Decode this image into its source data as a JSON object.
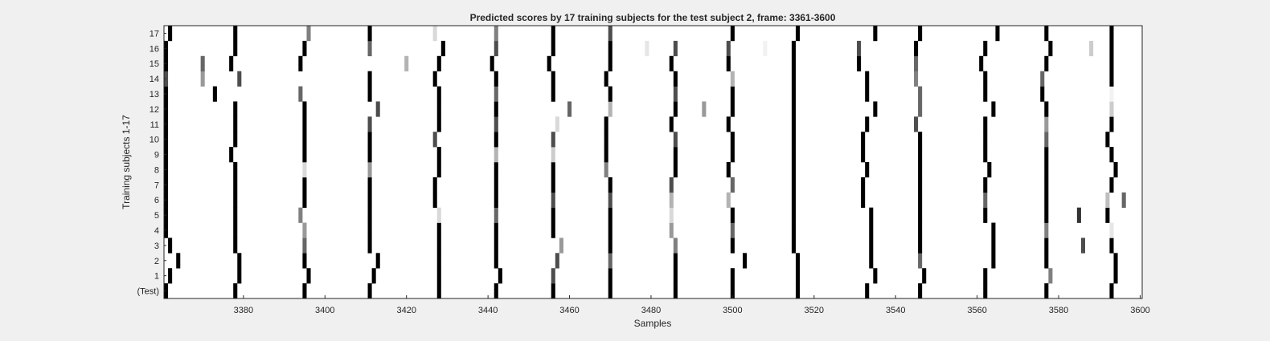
{
  "chart_data": {
    "type": "heatmap",
    "title": "Predicted scores by 17 training subjects for the test subject 2, frame: 3361-3600",
    "xlabel": "Samples",
    "ylabel": "Training subjects 1-17",
    "xlim": [
      3361,
      3600
    ],
    "x_ticks": [
      3380,
      3400,
      3420,
      3440,
      3460,
      3480,
      3500,
      3520,
      3540,
      3560,
      3580,
      3600
    ],
    "rows": [
      "(Test)",
      "1",
      "2",
      "3",
      "4",
      "5",
      "6",
      "7",
      "8",
      "9",
      "10",
      "11",
      "12",
      "13",
      "14",
      "15",
      "16",
      "17"
    ],
    "colormap": "white (0) to black (1)",
    "background_color": "#ffffff",
    "figure_color": "#f0f0f0",
    "marks_format": "per row: [sample, score 0-1]",
    "marks": {
      "(Test)": [
        [
          3361,
          1
        ],
        [
          3378,
          1
        ],
        [
          3395,
          1
        ],
        [
          3411,
          1
        ],
        [
          3428,
          1
        ],
        [
          3442,
          1
        ],
        [
          3456,
          1
        ],
        [
          3470,
          1
        ],
        [
          3486,
          1
        ],
        [
          3500,
          1
        ],
        [
          3516,
          1
        ],
        [
          3533,
          1
        ],
        [
          3546,
          1
        ],
        [
          3562,
          1
        ],
        [
          3577,
          1
        ],
        [
          3593,
          1
        ]
      ],
      "1": [
        [
          3362,
          1
        ],
        [
          3379,
          1
        ],
        [
          3396,
          1
        ],
        [
          3412,
          1
        ],
        [
          3428,
          1
        ],
        [
          3443,
          1
        ],
        [
          3456,
          0.7
        ],
        [
          3470,
          1
        ],
        [
          3486,
          1
        ],
        [
          3500,
          1
        ],
        [
          3516,
          1
        ],
        [
          3535,
          1
        ],
        [
          3547,
          1
        ],
        [
          3562,
          1
        ],
        [
          3578,
          0.5
        ],
        [
          3594,
          1
        ]
      ],
      "2": [
        [
          3364,
          1
        ],
        [
          3379,
          1
        ],
        [
          3395,
          1
        ],
        [
          3413,
          1
        ],
        [
          3428,
          1
        ],
        [
          3442,
          1
        ],
        [
          3457,
          0.7
        ],
        [
          3470,
          0.6
        ],
        [
          3486,
          1
        ],
        [
          3503,
          1
        ],
        [
          3516,
          1
        ],
        [
          3534,
          1
        ],
        [
          3546,
          0.6
        ],
        [
          3564,
          1
        ],
        [
          3577,
          1
        ],
        [
          3594,
          1
        ]
      ],
      "3": [
        [
          3362,
          1
        ],
        [
          3378,
          1
        ],
        [
          3395,
          0.6
        ],
        [
          3411,
          1
        ],
        [
          3428,
          1
        ],
        [
          3442,
          1
        ],
        [
          3458,
          0.4
        ],
        [
          3470,
          1
        ],
        [
          3486,
          0.5
        ],
        [
          3500,
          1
        ],
        [
          3515,
          1
        ],
        [
          3534,
          1
        ],
        [
          3546,
          1
        ],
        [
          3564,
          1
        ],
        [
          3577,
          1
        ],
        [
          3586,
          0.7
        ],
        [
          3593,
          1
        ]
      ],
      "4": [
        [
          3361,
          1
        ],
        [
          3378,
          1
        ],
        [
          3395,
          0.4
        ],
        [
          3411,
          1
        ],
        [
          3428,
          1
        ],
        [
          3442,
          1
        ],
        [
          3456,
          1
        ],
        [
          3470,
          1
        ],
        [
          3485,
          0.4
        ],
        [
          3500,
          0.6
        ],
        [
          3515,
          1
        ],
        [
          3534,
          1
        ],
        [
          3546,
          1
        ],
        [
          3564,
          1
        ],
        [
          3577,
          0.5
        ],
        [
          3593,
          0.1
        ]
      ],
      "5": [
        [
          3361,
          1
        ],
        [
          3378,
          1
        ],
        [
          3394,
          0.5
        ],
        [
          3411,
          1
        ],
        [
          3428,
          0.15
        ],
        [
          3442,
          0.6
        ],
        [
          3456,
          1
        ],
        [
          3470,
          1
        ],
        [
          3485,
          0.15
        ],
        [
          3500,
          1
        ],
        [
          3515,
          1
        ],
        [
          3534,
          1
        ],
        [
          3546,
          1
        ],
        [
          3562,
          1
        ],
        [
          3577,
          1
        ],
        [
          3585,
          0.8
        ],
        [
          3592,
          1
        ]
      ],
      "6": [
        [
          3361,
          1
        ],
        [
          3378,
          1
        ],
        [
          3395,
          1
        ],
        [
          3411,
          1
        ],
        [
          3427,
          1
        ],
        [
          3442,
          1
        ],
        [
          3456,
          0.7
        ],
        [
          3470,
          0.7
        ],
        [
          3485,
          0.3
        ],
        [
          3499,
          0.3
        ],
        [
          3515,
          1
        ],
        [
          3532,
          1
        ],
        [
          3546,
          1
        ],
        [
          3562,
          0.6
        ],
        [
          3577,
          1
        ],
        [
          3592,
          0.25
        ],
        [
          3596,
          0.6
        ]
      ],
      "7": [
        [
          3361,
          1
        ],
        [
          3378,
          1
        ],
        [
          3395,
          1
        ],
        [
          3411,
          1
        ],
        [
          3427,
          1
        ],
        [
          3442,
          1
        ],
        [
          3456,
          1
        ],
        [
          3470,
          1
        ],
        [
          3485,
          0.7
        ],
        [
          3500,
          0.6
        ],
        [
          3515,
          1
        ],
        [
          3532,
          1
        ],
        [
          3546,
          1
        ],
        [
          3562,
          1
        ],
        [
          3577,
          1
        ],
        [
          3593,
          1
        ]
      ],
      "8": [
        [
          3361,
          1
        ],
        [
          3378,
          1
        ],
        [
          3395,
          0.15
        ],
        [
          3411,
          0.4
        ],
        [
          3428,
          1
        ],
        [
          3442,
          1
        ],
        [
          3456,
          1
        ],
        [
          3469,
          0.5
        ],
        [
          3486,
          1
        ],
        [
          3499,
          1
        ],
        [
          3515,
          1
        ],
        [
          3533,
          1
        ],
        [
          3546,
          1
        ],
        [
          3563,
          1
        ],
        [
          3577,
          1
        ],
        [
          3594,
          1
        ]
      ],
      "9": [
        [
          3361,
          1
        ],
        [
          3377,
          1
        ],
        [
          3395,
          1
        ],
        [
          3411,
          1
        ],
        [
          3428,
          1
        ],
        [
          3442,
          0.3
        ],
        [
          3456,
          0.2
        ],
        [
          3469,
          1
        ],
        [
          3486,
          1
        ],
        [
          3500,
          1
        ],
        [
          3515,
          1
        ],
        [
          3532,
          1
        ],
        [
          3546,
          1
        ],
        [
          3562,
          1
        ],
        [
          3577,
          1
        ],
        [
          3593,
          1
        ]
      ],
      "10": [
        [
          3361,
          1
        ],
        [
          3378,
          1
        ],
        [
          3395,
          1
        ],
        [
          3411,
          1
        ],
        [
          3427,
          0.7
        ],
        [
          3442,
          1
        ],
        [
          3456,
          0.7
        ],
        [
          3469,
          1
        ],
        [
          3486,
          0.7
        ],
        [
          3500,
          1
        ],
        [
          3515,
          1
        ],
        [
          3532,
          1
        ],
        [
          3546,
          1
        ],
        [
          3562,
          1
        ],
        [
          3577,
          0.6
        ],
        [
          3592,
          1
        ]
      ],
      "11": [
        [
          3361,
          1
        ],
        [
          3378,
          1
        ],
        [
          3395,
          1
        ],
        [
          3411,
          0.7
        ],
        [
          3428,
          1
        ],
        [
          3442,
          0.7
        ],
        [
          3457,
          0.15
        ],
        [
          3469,
          1
        ],
        [
          3485,
          1
        ],
        [
          3499,
          1
        ],
        [
          3515,
          1
        ],
        [
          3533,
          1
        ],
        [
          3545,
          0.7
        ],
        [
          3562,
          1
        ],
        [
          3577,
          0.4
        ],
        [
          3593,
          1
        ]
      ],
      "12": [
        [
          3361,
          1
        ],
        [
          3378,
          1
        ],
        [
          3395,
          1
        ],
        [
          3413,
          0.7
        ],
        [
          3428,
          1
        ],
        [
          3442,
          1
        ],
        [
          3460,
          0.6
        ],
        [
          3470,
          0.3
        ],
        [
          3486,
          1
        ],
        [
          3493,
          0.4
        ],
        [
          3500,
          1
        ],
        [
          3515,
          1
        ],
        [
          3535,
          1
        ],
        [
          3546,
          0.6
        ],
        [
          3564,
          1
        ],
        [
          3577,
          1
        ],
        [
          3593,
          0.2
        ]
      ],
      "13": [
        [
          3361,
          1
        ],
        [
          3373,
          1
        ],
        [
          3394,
          0.6
        ],
        [
          3411,
          1
        ],
        [
          3428,
          1
        ],
        [
          3442,
          0.6
        ],
        [
          3456,
          1
        ],
        [
          3470,
          1
        ],
        [
          3486,
          0.7
        ],
        [
          3500,
          1
        ],
        [
          3515,
          1
        ],
        [
          3533,
          1
        ],
        [
          3546,
          0.6
        ],
        [
          3562,
          1
        ],
        [
          3576,
          1
        ],
        [
          3593,
          0.05
        ]
      ],
      "14": [
        [
          3361,
          0.7
        ],
        [
          3370,
          0.4
        ],
        [
          3379,
          0.7
        ],
        [
          3411,
          1
        ],
        [
          3427,
          1
        ],
        [
          3442,
          1
        ],
        [
          3456,
          1
        ],
        [
          3469,
          1
        ],
        [
          3486,
          1
        ],
        [
          3500,
          0.3
        ],
        [
          3515,
          1
        ],
        [
          3533,
          1
        ],
        [
          3545,
          0.5
        ],
        [
          3562,
          1
        ],
        [
          3576,
          0.6
        ],
        [
          3593,
          1
        ]
      ],
      "15": [
        [
          3361,
          1
        ],
        [
          3370,
          0.6
        ],
        [
          3377,
          1
        ],
        [
          3394,
          1
        ],
        [
          3420,
          0.3
        ],
        [
          3428,
          1
        ],
        [
          3441,
          1
        ],
        [
          3455,
          1
        ],
        [
          3470,
          1
        ],
        [
          3485,
          1
        ],
        [
          3499,
          1
        ],
        [
          3515,
          1
        ],
        [
          3531,
          1
        ],
        [
          3545,
          0.6
        ],
        [
          3561,
          1
        ],
        [
          3577,
          1
        ],
        [
          3593,
          1
        ]
      ],
      "16": [
        [
          3361,
          1
        ],
        [
          3378,
          1
        ],
        [
          3395,
          1
        ],
        [
          3411,
          0.6
        ],
        [
          3429,
          1
        ],
        [
          3442,
          0.7
        ],
        [
          3456,
          1
        ],
        [
          3470,
          1
        ],
        [
          3479,
          0.1
        ],
        [
          3486,
          0.7
        ],
        [
          3499,
          0.7
        ],
        [
          3508,
          0.05
        ],
        [
          3515,
          1
        ],
        [
          3531,
          0.7
        ],
        [
          3545,
          1
        ],
        [
          3562,
          1
        ],
        [
          3578,
          1
        ],
        [
          3588,
          0.2
        ],
        [
          3593,
          1
        ]
      ],
      "17": [
        [
          3362,
          1
        ],
        [
          3378,
          1
        ],
        [
          3396,
          0.5
        ],
        [
          3411,
          1
        ],
        [
          3427,
          0.15
        ],
        [
          3442,
          0.5
        ],
        [
          3456,
          1
        ],
        [
          3470,
          0.7
        ],
        [
          3500,
          1
        ],
        [
          3516,
          1
        ],
        [
          3535,
          1
        ],
        [
          3546,
          1
        ],
        [
          3565,
          1
        ],
        [
          3577,
          1
        ],
        [
          3593,
          1
        ]
      ]
    }
  }
}
